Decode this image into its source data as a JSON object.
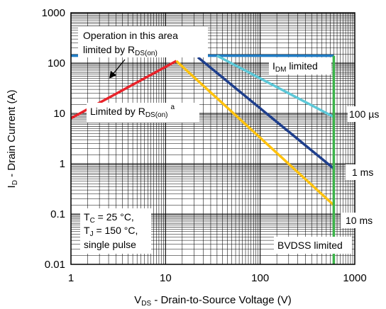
{
  "chart_data": {
    "type": "line",
    "x_scale": "log",
    "y_scale": "log",
    "xlim": [
      1,
      1000
    ],
    "ylim": [
      0.01,
      1000
    ],
    "grid": true,
    "x_ticks": [
      "1",
      "10",
      "100",
      "1000"
    ],
    "y_ticks": [
      "0.01",
      "0.1",
      "1",
      "10",
      "100",
      "1000"
    ],
    "xlabel": {
      "main": "V",
      "sub": "DS",
      "rest": " - Drain-to-Source Voltage (V)"
    },
    "ylabel": {
      "main": "I",
      "sub": "D",
      "rest": " - Drain Current (A)"
    },
    "colors": {
      "rds_limit": "#e8232a",
      "idm_limit": "#1f7bc4",
      "us100": "#5cc8d8",
      "ms1": "#1f3f8c",
      "ms10": "#ffc20e",
      "bvdss": "#3cb44a"
    },
    "series": [
      {
        "name": "RDS(on) limit",
        "color_key": "rds_limit",
        "points": [
          [
            1,
            8
          ],
          [
            13,
            110
          ]
        ]
      },
      {
        "name": "IDM limited",
        "color_key": "idm_limit",
        "points": [
          [
            1,
            140
          ],
          [
            600,
            140
          ]
        ]
      },
      {
        "name": "100 µs",
        "color_key": "us100",
        "points": [
          [
            35,
            140
          ],
          [
            600,
            8.5
          ]
        ]
      },
      {
        "name": "1 ms",
        "color_key": "ms1",
        "points": [
          [
            22,
            130
          ],
          [
            600,
            0.8
          ]
        ]
      },
      {
        "name": "10 ms",
        "color_key": "ms10",
        "points": [
          [
            13,
            110
          ],
          [
            600,
            0.15
          ]
        ]
      },
      {
        "name": "BVDSS limited",
        "color_key": "bvdss",
        "points": [
          [
            600,
            140
          ],
          [
            600,
            0.01
          ]
        ]
      }
    ],
    "annotations": {
      "op_area_line1": "Operation in this area",
      "op_area_line2_main": "limited by R",
      "op_area_line2_sub": "DS(on)",
      "limited_main": "Limited by R",
      "limited_sub": "DS(on)",
      "limited_sup": "a",
      "idm_main": "I",
      "idm_sub": "DM",
      "idm_rest": " limited",
      "label_100us": "100 µs",
      "label_1ms": "1 ms",
      "label_10ms": "10 ms",
      "bvdss_label": "BVDSS limited",
      "cond_tc_main": "T",
      "cond_tc_sub": "C",
      "cond_tc_rest": " = 25 °C,",
      "cond_tj_main": "T",
      "cond_tj_sub": "J",
      "cond_tj_rest": " = 150 °C,",
      "cond_pulse": "single pulse"
    }
  }
}
